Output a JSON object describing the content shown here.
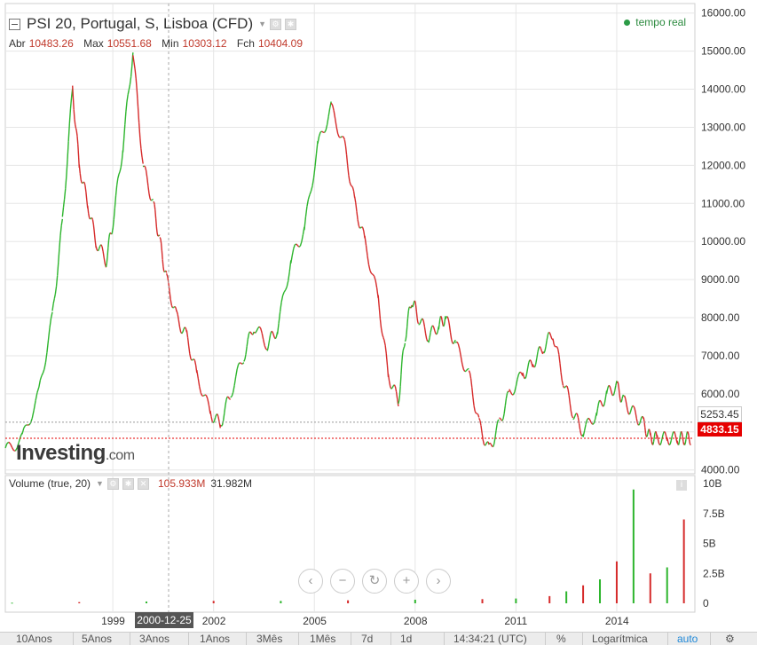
{
  "title": "PSI 20, Portugal, S, Lisboa (CFD)",
  "ohlc": {
    "open_label": "Abr",
    "open": "10483.26",
    "high_label": "Max",
    "high": "10551.68",
    "low_label": "Min",
    "low": "10303.12",
    "close_label": "Fch",
    "close": "10404.09"
  },
  "realtime_label": "tempo real",
  "logo": {
    "name": "Investing",
    "suffix": ".com"
  },
  "volume_header": {
    "label": "Volume (true, 20)",
    "value1": "105.933M",
    "value2": "31.982M"
  },
  "crosshair_date": "2000-12-25",
  "current_price_box": "5253.45",
  "last_price_box": "4833.15",
  "timeframes": [
    "10Anos",
    "5Anos",
    "3Anos",
    "1Anos",
    "3Mês",
    "1Mês",
    "7d",
    "1d"
  ],
  "clock": "14:34:21 (UTC)",
  "percent_label": "%",
  "log_label": "Logarítmica",
  "auto_label": "auto",
  "colors": {
    "up": "#2db52d",
    "down": "#d62b2b",
    "grid": "#e6e6e6",
    "last_line": "#e60000"
  },
  "chart_data": {
    "type": "line",
    "title": "PSI 20, Portugal, S, Lisboa (CFD)",
    "y_ticks": [
      "16000.00",
      "15000.00",
      "14000.00",
      "13000.00",
      "12000.00",
      "11000.00",
      "10000.00",
      "9000.00",
      "8000.00",
      "7000.00",
      "6000.00",
      "5000.00",
      "4000.00"
    ],
    "x_ticks": [
      "1999",
      "2002",
      "2005",
      "2008",
      "2011",
      "2014"
    ],
    "ylim": [
      3900,
      16250
    ],
    "price_series": {
      "name": "PSI 20",
      "x": [
        1995.8,
        1996.3,
        1996.8,
        1997.2,
        1997.5,
        1997.8,
        1998.0,
        1998.25,
        1998.5,
        1998.8,
        1999.0,
        1999.3,
        1999.6,
        1999.9,
        2000.2,
        2000.4,
        2000.6,
        2000.9,
        2001.2,
        2001.5,
        2001.9,
        2002.2,
        2002.5,
        2002.9,
        2003.2,
        2003.6,
        2003.9,
        2004.3,
        2004.7,
        2005.1,
        2005.5,
        2005.9,
        2006.2,
        2006.5,
        2006.9,
        2007.2,
        2007.5,
        2007.7,
        2007.9,
        2008.1,
        2008.4,
        2008.7,
        2008.9,
        2009.2,
        2009.6,
        2009.9,
        2010.2,
        2010.5,
        2010.8,
        2011.2,
        2011.5,
        2011.8,
        2012.1,
        2012.4,
        2012.7,
        2013.0,
        2013.4,
        2013.7,
        2014.0,
        2014.2,
        2014.5,
        2014.8,
        2015.0,
        2015.2,
        2015.5,
        2015.8,
        2016.0,
        2016.2
      ],
      "y": [
        4500,
        4800,
        6000,
        8000,
        10500,
        14000,
        12000,
        11000,
        10000,
        9500,
        10500,
        12500,
        15000,
        12000,
        11000,
        10000,
        9000,
        8000,
        7500,
        6500,
        5500,
        5200,
        6000,
        7000,
        7800,
        7300,
        7700,
        9500,
        10300,
        12500,
        13500,
        12500,
        11000,
        10000,
        8500,
        6500,
        5800,
        7500,
        8500,
        8000,
        7500,
        7800,
        8000,
        7300,
        6500,
        5200,
        4500,
        5200,
        6000,
        6500,
        6800,
        7200,
        7600,
        6400,
        5500,
        5000,
        5500,
        6000,
        6200,
        5800,
        5500,
        5200,
        4833,
        4833,
        4833,
        4833,
        4833,
        4833
      ]
    },
    "volume_axis_ticks": [
      "10B",
      "7.5B",
      "5B",
      "2.5B",
      "0"
    ],
    "volume_series": {
      "name": "Volume",
      "x": [
        1996,
        1998,
        2000,
        2002,
        2004,
        2006,
        2008,
        2010,
        2011,
        2012,
        2012.5,
        2013,
        2013.5,
        2014,
        2014.5,
        2015,
        2015.5,
        2016
      ],
      "y": [
        0.05,
        0.1,
        0.15,
        0.2,
        0.2,
        0.25,
        0.3,
        0.35,
        0.4,
        0.6,
        1.0,
        1.5,
        2.0,
        3.5,
        9.5,
        2.5,
        3.0,
        7.0
      ]
    }
  }
}
